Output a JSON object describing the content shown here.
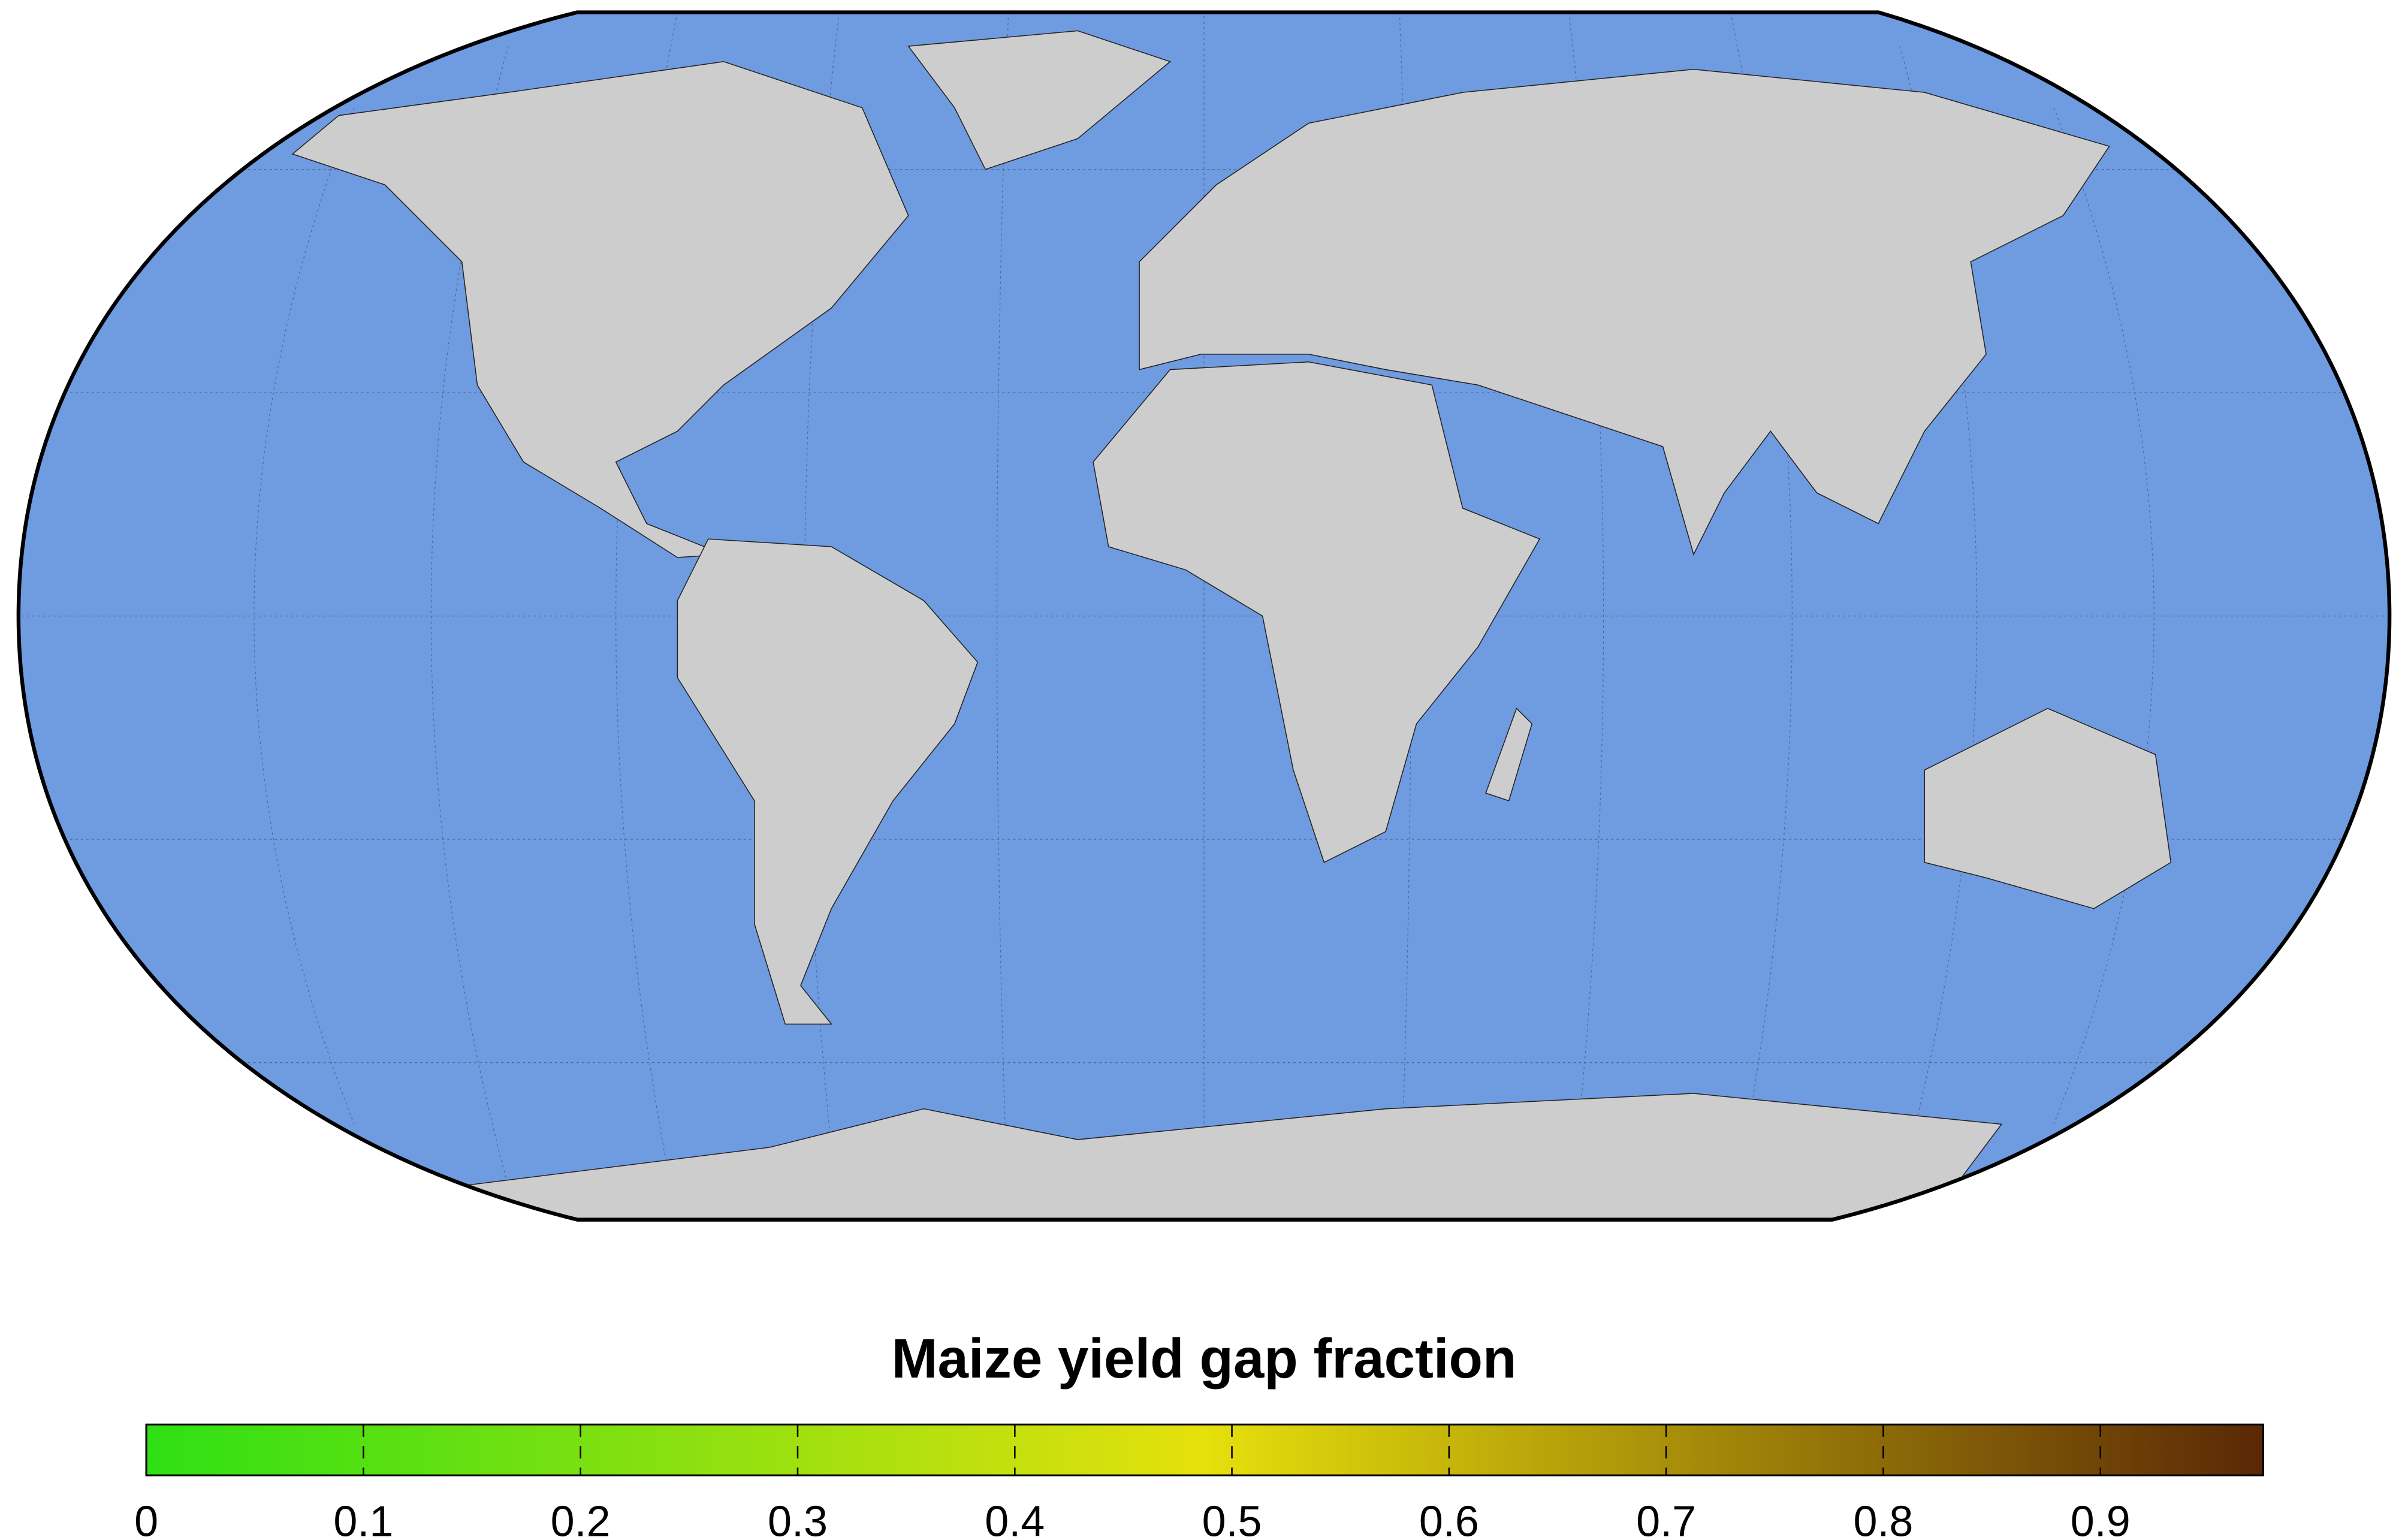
{
  "chart_data": {
    "type": "colorbar-map",
    "title": "Maize yield gap fraction",
    "colorbar": {
      "lim": [
        0,
        0.975
      ],
      "ticks": [
        0,
        0.1,
        0.2,
        0.3,
        0.4,
        0.5,
        0.6,
        0.7,
        0.8,
        0.9
      ],
      "colors": [
        "#2ee014",
        "#e6e00c",
        "#5a2806"
      ]
    }
  }
}
